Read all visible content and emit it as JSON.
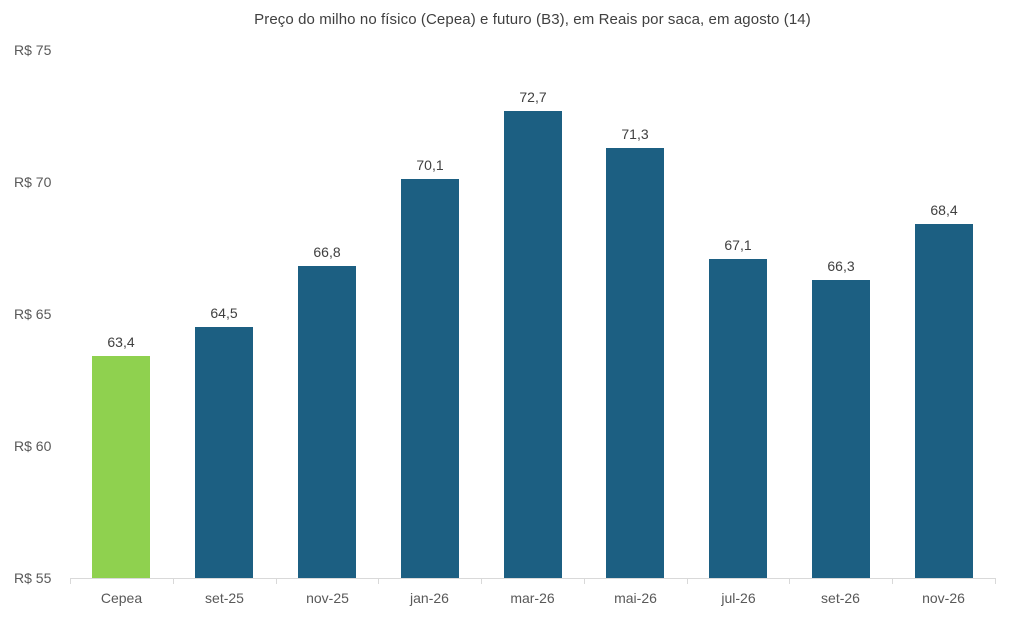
{
  "chart_data": {
    "type": "bar",
    "title": "Preço do milho no físico (Cepea) e futuro (B3), em Reais por saca, em agosto (14)",
    "categories": [
      "Cepea",
      "set-25",
      "nov-25",
      "jan-26",
      "mar-26",
      "mai-26",
      "jul-26",
      "set-26",
      "nov-26"
    ],
    "values": [
      63.4,
      64.5,
      66.8,
      70.1,
      72.7,
      71.3,
      67.1,
      66.3,
      68.4
    ],
    "value_labels": [
      "63,4",
      "64,5",
      "66,8",
      "70,1",
      "72,7",
      "71,3",
      "67,1",
      "66,3",
      "68,4"
    ],
    "xlabel": "",
    "ylabel": "",
    "ylim": [
      55,
      75
    ],
    "y_ticks": [
      {
        "label": "R$ 75",
        "value": 75
      },
      {
        "label": "R$ 70",
        "value": 70
      },
      {
        "label": "R$ 65",
        "value": 65
      },
      {
        "label": "R$ 60",
        "value": 60
      },
      {
        "label": "R$ 55",
        "value": 55
      }
    ],
    "grid": false,
    "legend": "none",
    "colors": {
      "cepea_bar": "#8FD14F",
      "futures_bar": "#1C5F82",
      "axis_line": "#D9D9D9",
      "axis_text": "#595959",
      "value_text": "#404040",
      "title_text": "#404040",
      "background": "#FFFFFF"
    }
  }
}
